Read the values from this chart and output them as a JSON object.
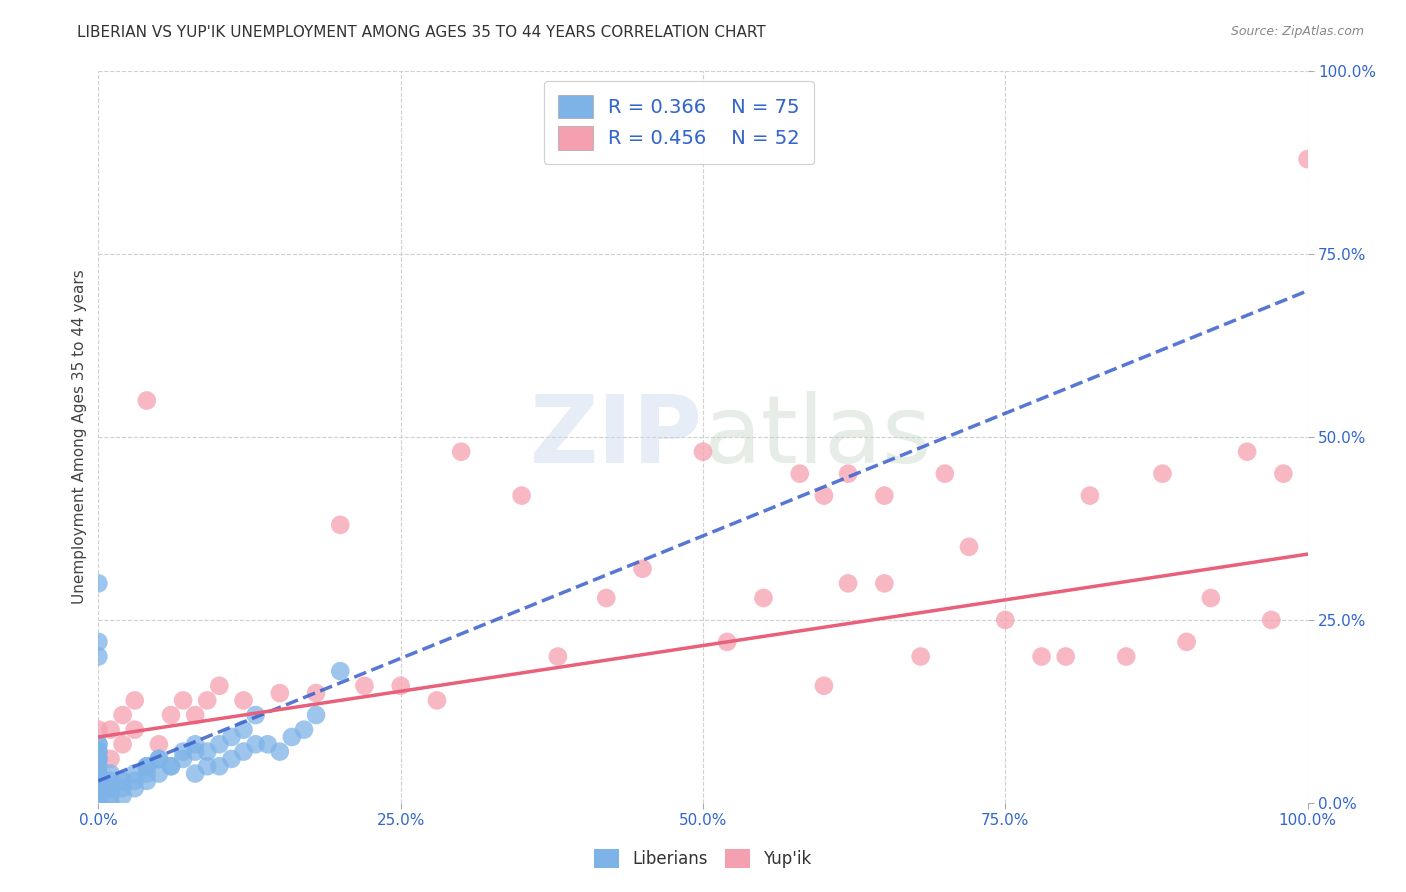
{
  "title": "LIBERIAN VS YUP'IK UNEMPLOYMENT AMONG AGES 35 TO 44 YEARS CORRELATION CHART",
  "source": "Source: ZipAtlas.com",
  "ylabel": "Unemployment Among Ages 35 to 44 years",
  "xlim": [
    0.0,
    1.0
  ],
  "ylim": [
    0.0,
    1.0
  ],
  "xticks": [
    0.0,
    0.25,
    0.5,
    0.75,
    1.0
  ],
  "yticks": [
    0.0,
    0.25,
    0.5,
    0.75,
    1.0
  ],
  "xticklabels": [
    "0.0%",
    "25.0%",
    "50.0%",
    "75.0%",
    "100.0%"
  ],
  "yticklabels": [
    "0.0%",
    "25.0%",
    "50.0%",
    "75.0%",
    "100.0%"
  ],
  "liberian_color": "#7eb3e8",
  "yupik_color": "#f5a0b0",
  "liberian_line_color": "#3a5fcd",
  "yupik_line_color": "#e8607a",
  "legend_r1": "R = 0.366",
  "legend_n1": "N = 75",
  "legend_r2": "R = 0.456",
  "legend_n2": "N = 52",
  "legend_label1": "Liberians",
  "legend_label2": "Yup'ik",
  "liberian_x": [
    0.0,
    0.0,
    0.0,
    0.0,
    0.0,
    0.0,
    0.0,
    0.0,
    0.0,
    0.0,
    0.0,
    0.0,
    0.0,
    0.0,
    0.0,
    0.0,
    0.0,
    0.0,
    0.0,
    0.0,
    0.01,
    0.01,
    0.01,
    0.01,
    0.01,
    0.02,
    0.02,
    0.02,
    0.03,
    0.03,
    0.04,
    0.04,
    0.04,
    0.05,
    0.05,
    0.06,
    0.07,
    0.08,
    0.08,
    0.09,
    0.1,
    0.11,
    0.12,
    0.13,
    0.14,
    0.15,
    0.16,
    0.17,
    0.18,
    0.2,
    0.06,
    0.07,
    0.08,
    0.09,
    0.1,
    0.11,
    0.12,
    0.13,
    0.05,
    0.04,
    0.03,
    0.02,
    0.01,
    0.0,
    0.0,
    0.0,
    0.0,
    0.0,
    0.0,
    0.0,
    0.0,
    0.0,
    0.0,
    0.0,
    0.0
  ],
  "liberian_y": [
    0.0,
    0.0,
    0.0,
    0.0,
    0.0,
    0.0,
    0.0,
    0.0,
    0.01,
    0.01,
    0.01,
    0.01,
    0.02,
    0.02,
    0.02,
    0.03,
    0.03,
    0.04,
    0.04,
    0.05,
    0.0,
    0.01,
    0.02,
    0.03,
    0.04,
    0.01,
    0.02,
    0.03,
    0.02,
    0.03,
    0.03,
    0.04,
    0.05,
    0.04,
    0.06,
    0.05,
    0.06,
    0.04,
    0.07,
    0.05,
    0.05,
    0.06,
    0.07,
    0.08,
    0.08,
    0.07,
    0.09,
    0.1,
    0.12,
    0.18,
    0.05,
    0.07,
    0.08,
    0.07,
    0.08,
    0.09,
    0.1,
    0.12,
    0.06,
    0.05,
    0.04,
    0.03,
    0.02,
    0.06,
    0.07,
    0.08,
    0.22,
    0.2,
    0.3,
    0.06,
    0.07,
    0.08,
    0.05,
    0.04,
    0.03
  ],
  "yupik_x": [
    0.0,
    0.0,
    0.01,
    0.01,
    0.02,
    0.02,
    0.03,
    0.03,
    0.04,
    0.05,
    0.06,
    0.07,
    0.08,
    0.09,
    0.1,
    0.12,
    0.15,
    0.18,
    0.2,
    0.22,
    0.25,
    0.28,
    0.3,
    0.35,
    0.38,
    0.42,
    0.45,
    0.5,
    0.52,
    0.55,
    0.58,
    0.6,
    0.62,
    0.65,
    0.68,
    0.7,
    0.72,
    0.75,
    0.78,
    0.8,
    0.82,
    0.85,
    0.88,
    0.9,
    0.92,
    0.95,
    0.97,
    0.98,
    1.0,
    0.6,
    0.62,
    0.65
  ],
  "yupik_y": [
    0.06,
    0.1,
    0.06,
    0.1,
    0.08,
    0.12,
    0.1,
    0.14,
    0.55,
    0.08,
    0.12,
    0.14,
    0.12,
    0.14,
    0.16,
    0.14,
    0.15,
    0.15,
    0.38,
    0.16,
    0.16,
    0.14,
    0.48,
    0.42,
    0.2,
    0.28,
    0.32,
    0.48,
    0.22,
    0.28,
    0.45,
    0.16,
    0.3,
    0.3,
    0.2,
    0.45,
    0.35,
    0.25,
    0.2,
    0.2,
    0.42,
    0.2,
    0.45,
    0.22,
    0.28,
    0.48,
    0.25,
    0.45,
    0.88,
    0.42,
    0.45,
    0.42
  ],
  "liberian_line_x0": 0.0,
  "liberian_line_x1": 1.0,
  "liberian_line_y0": 0.03,
  "liberian_line_y1": 0.7,
  "yupik_line_x0": 0.0,
  "yupik_line_x1": 1.0,
  "yupik_line_y0": 0.09,
  "yupik_line_y1": 0.34,
  "background_color": "#ffffff",
  "grid_color": "#d0d0d0",
  "title_fontsize": 11,
  "axis_label_fontsize": 11,
  "tick_fontsize": 11
}
